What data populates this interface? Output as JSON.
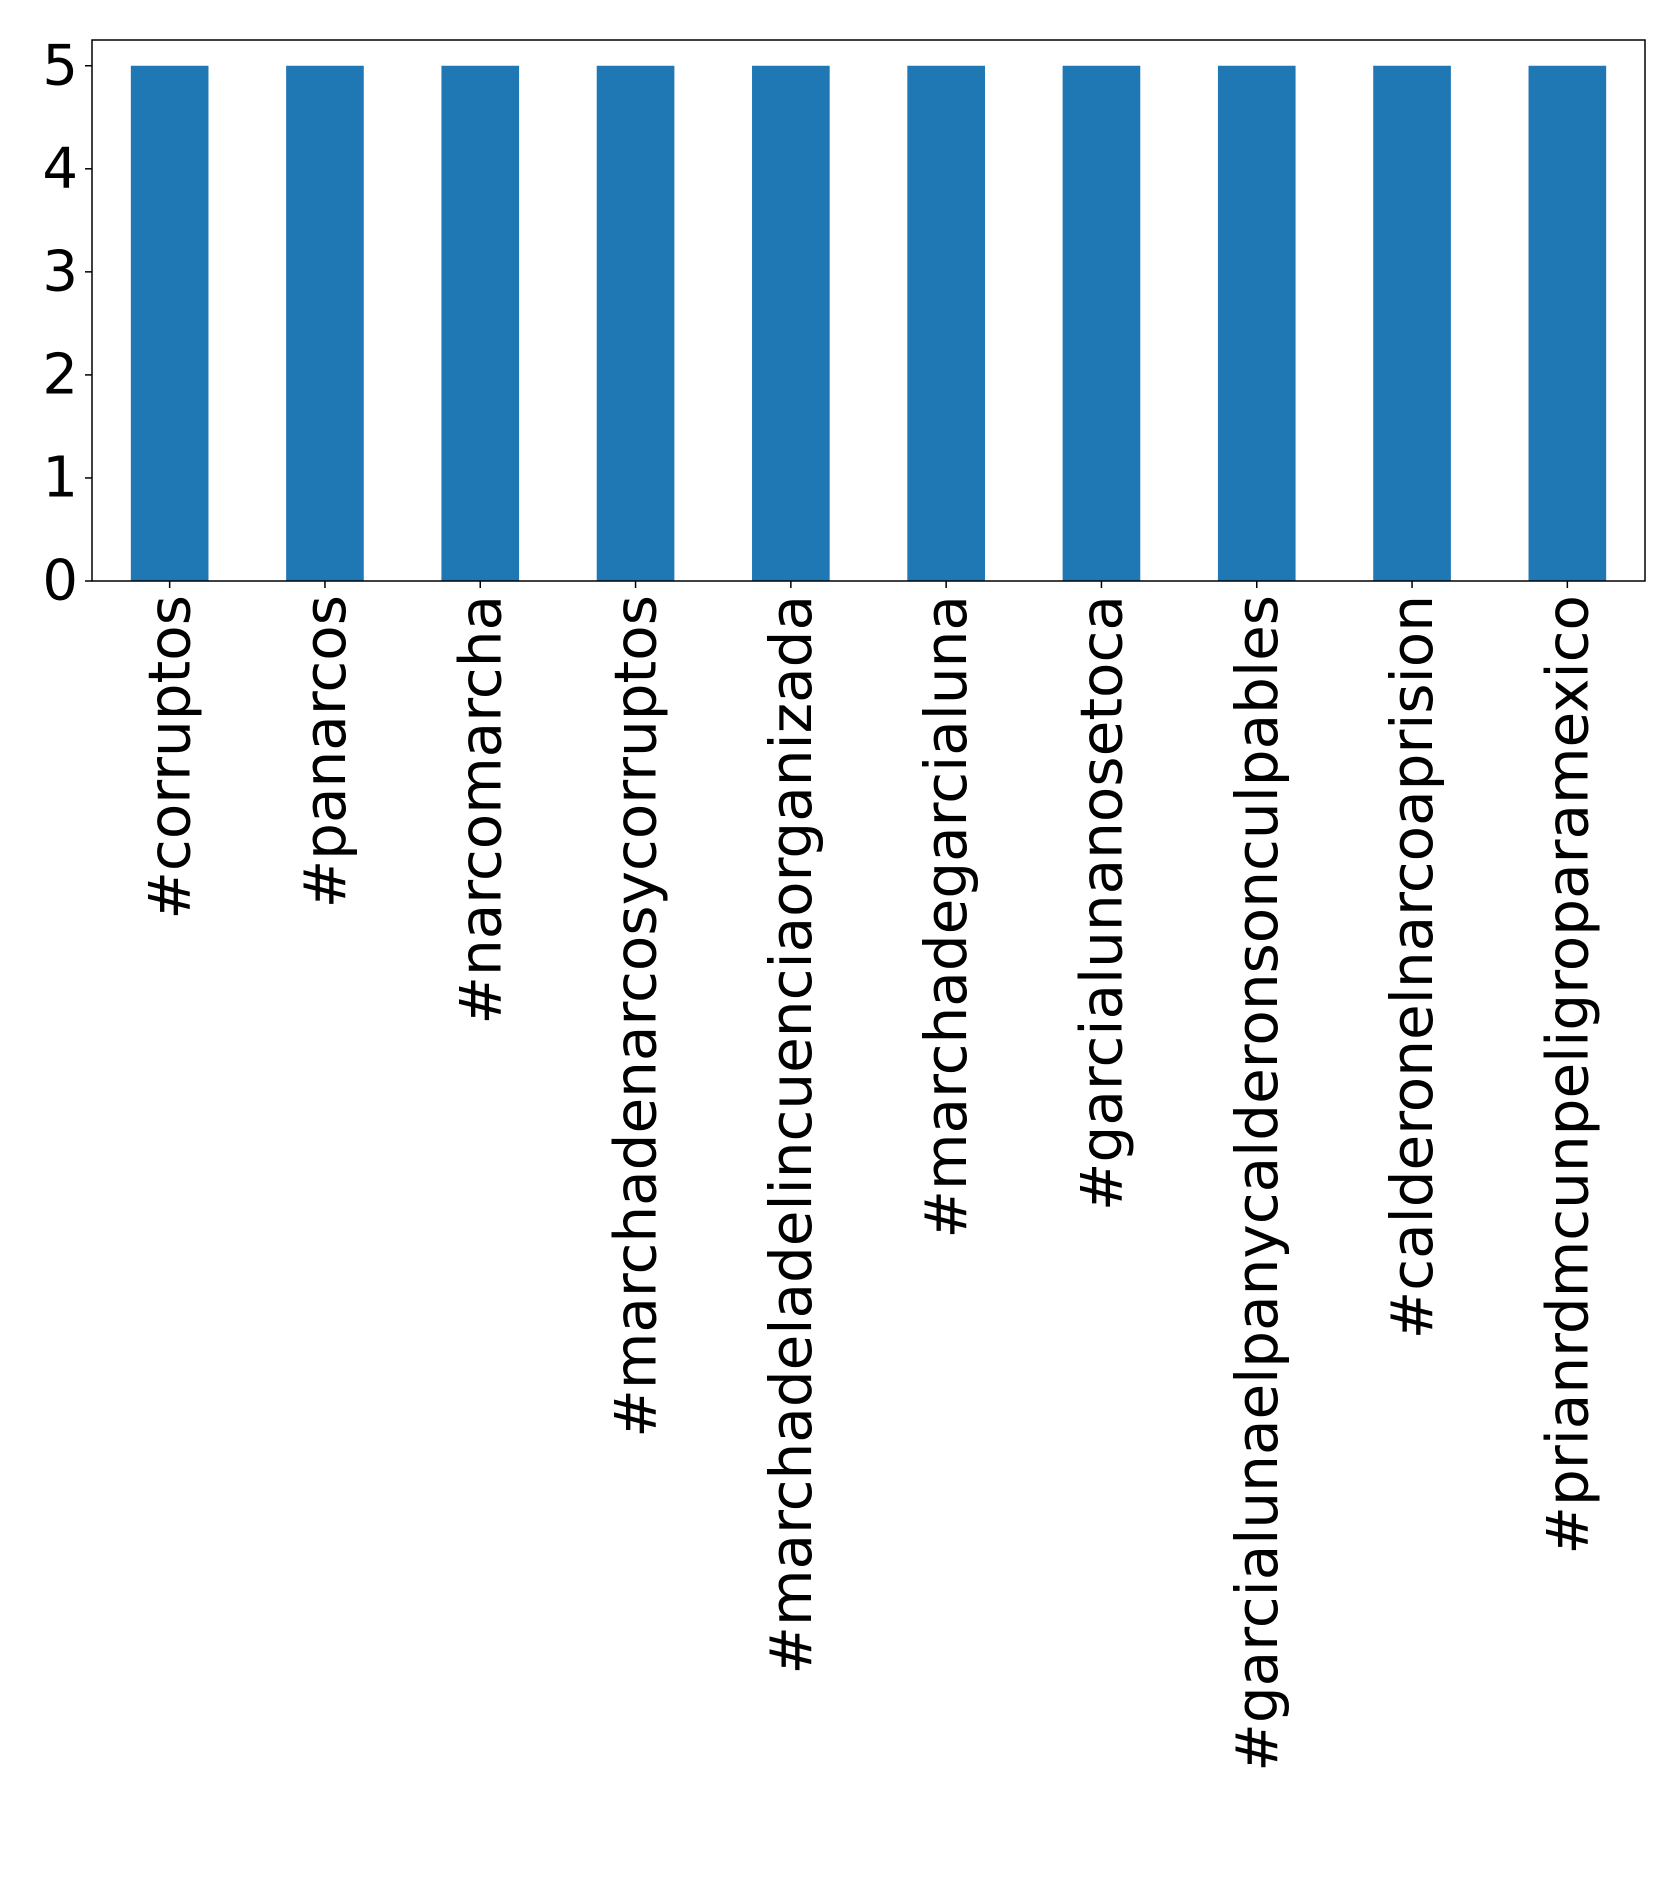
{
  "chart_data": {
    "type": "bar",
    "title": "",
    "xlabel": "",
    "ylabel": "",
    "categories": [
      "#corruptos",
      "#panarcos",
      "#narcomarcha",
      "#marchadenarcosycorruptos",
      "#marchadeladelincuenciaorganizada",
      "#marchadegarcialuna",
      "#garcialunanosetoca",
      "#garcialunaelpanycalderonsonculpables",
      "#calderonelnarcoaprision",
      "#prianrdmcunpeligroparamexico"
    ],
    "values": [
      5,
      5,
      5,
      5,
      5,
      5,
      5,
      5,
      5,
      5
    ],
    "ylim": [
      0,
      5.25
    ],
    "yticks": [
      0,
      1,
      2,
      3,
      4,
      5
    ],
    "grid": false,
    "legend": false,
    "colors": {
      "bar": "#1f77b4",
      "axes": "#000000",
      "background": "#ffffff"
    }
  }
}
